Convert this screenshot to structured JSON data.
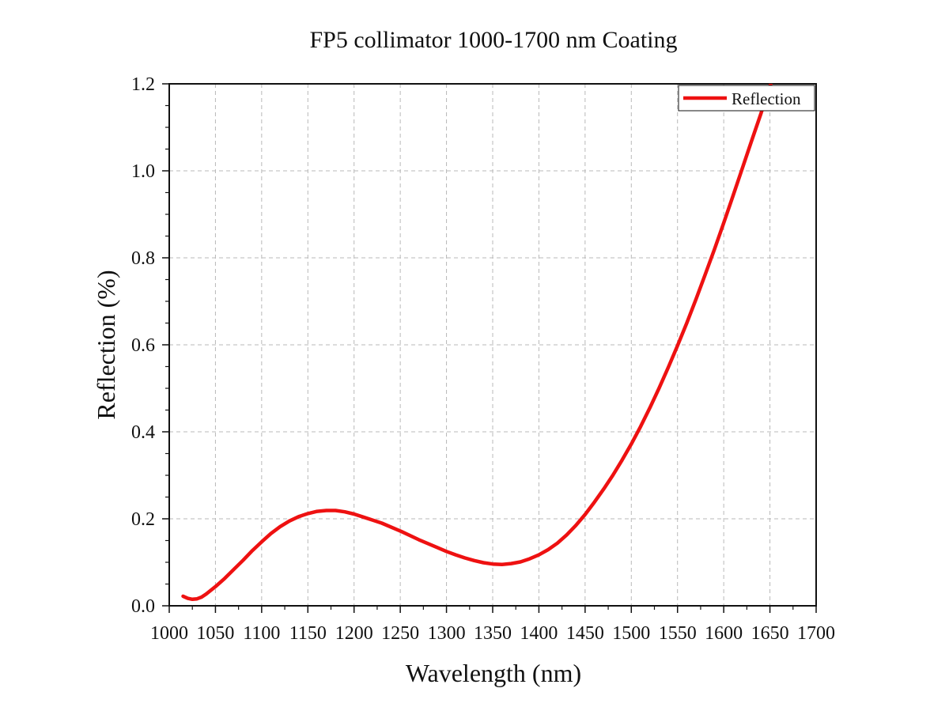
{
  "chart_data": {
    "type": "line",
    "title": "FP5 collimator 1000-1700 nm Coating",
    "xlabel": "Wavelength (nm)",
    "ylabel": "Reflection (%)",
    "xlim": [
      1000,
      1700
    ],
    "ylim": [
      0.0,
      1.2
    ],
    "xticks": [
      1000,
      1050,
      1100,
      1150,
      1200,
      1250,
      1300,
      1350,
      1400,
      1450,
      1500,
      1550,
      1600,
      1650,
      1700
    ],
    "xtick_labels": [
      "1000",
      "1050",
      "1100",
      "1150",
      "1200",
      "1250",
      "1300",
      "1350",
      "1400",
      "1450",
      "1500",
      "1550",
      "1600",
      "1650",
      "1700"
    ],
    "yticks": [
      0.0,
      0.2,
      0.4,
      0.6,
      0.8,
      1.0,
      1.2
    ],
    "ytick_labels": [
      "0.0",
      "0.2",
      "0.4",
      "0.6",
      "0.8",
      "1.0",
      "1.2"
    ],
    "grid": true,
    "legend_position": "top-right",
    "series": [
      {
        "name": "Reflection",
        "color": "#ee1111",
        "x": [
          1015,
          1020,
          1025,
          1030,
          1035,
          1040,
          1050,
          1060,
          1070,
          1080,
          1090,
          1100,
          1110,
          1120,
          1130,
          1140,
          1150,
          1160,
          1170,
          1180,
          1190,
          1200,
          1210,
          1220,
          1230,
          1250,
          1270,
          1290,
          1300,
          1310,
          1320,
          1330,
          1340,
          1350,
          1360,
          1370,
          1380,
          1390,
          1400,
          1410,
          1420,
          1430,
          1440,
          1450,
          1460,
          1470,
          1480,
          1490,
          1500,
          1510,
          1520,
          1530,
          1540,
          1550,
          1560,
          1570,
          1580,
          1590,
          1600,
          1610,
          1620,
          1630,
          1640,
          1650,
          1655
        ],
        "y": [
          0.022,
          0.017,
          0.015,
          0.016,
          0.02,
          0.027,
          0.044,
          0.063,
          0.084,
          0.105,
          0.127,
          0.147,
          0.166,
          0.182,
          0.195,
          0.205,
          0.212,
          0.217,
          0.219,
          0.219,
          0.216,
          0.211,
          0.204,
          0.197,
          0.19,
          0.172,
          0.152,
          0.134,
          0.125,
          0.117,
          0.11,
          0.104,
          0.099,
          0.096,
          0.095,
          0.097,
          0.101,
          0.108,
          0.117,
          0.129,
          0.144,
          0.163,
          0.185,
          0.21,
          0.238,
          0.268,
          0.3,
          0.335,
          0.372,
          0.412,
          0.455,
          0.5,
          0.548,
          0.598,
          0.65,
          0.705,
          0.762,
          0.82,
          0.88,
          0.942,
          1.005,
          1.068,
          1.13,
          1.195,
          1.225
        ]
      }
    ]
  }
}
